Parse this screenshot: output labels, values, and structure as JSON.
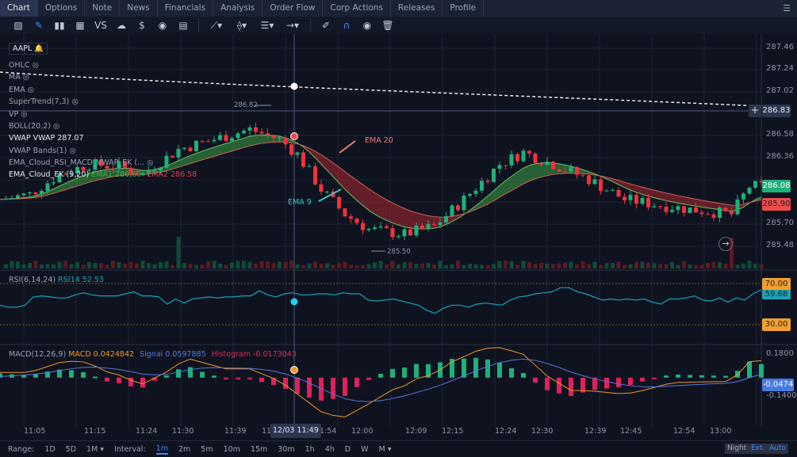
{
  "tabs": [
    "Chart",
    "Options",
    "Note",
    "News",
    "Financials",
    "Analysis",
    "Order Flow",
    "Corp Actions",
    "Releases",
    "Profile"
  ],
  "active_tab": "Chart",
  "toolbar": [
    "line-chart-icon",
    "pencil-icon",
    "candles-icon",
    "grid-icon",
    "vs-icon",
    "cloud-icon",
    "dollar-icon",
    "dividend-icon",
    "layout-icon",
    "trendline-icon",
    "multipoint-icon",
    "fib-icon",
    "arrow-icon",
    "brush-icon",
    "magnet-icon",
    "eye-icon",
    "trash-icon"
  ],
  "symbol": "AAPL",
  "legends": {
    "ohlc": "OHLC",
    "ma": "MA",
    "ema": "EMA",
    "supertrend": "SuperTrend(7,3)",
    "vp": "VP",
    "boll": "BOLL(20,2)",
    "vwap_name": "VWAP",
    "vwap_val": "VWAP 287.07",
    "vwap_bands": "VWAP Bands(1)",
    "ema_cloud_rsi": "EMA_Cloud_RSI_MACD_VWAP_EK (...",
    "ema_cloud": "EMA_Cloud_EK (9,20)",
    "ema1": "EMA1 286.60",
    "ema2": "EMA2 286.58",
    "rsi": "RSI(6,14,24)",
    "rsi14": "RSI14 52.53",
    "macd": "MACD(12,26,9)",
    "macd_val": "MACD 0.0424842",
    "signal": "Signal 0.0597885",
    "hist": "Histogram -0.0173043"
  },
  "annotations": {
    "ema20": "EMA 20",
    "ema9": "EMA 9",
    "high": "286.82",
    "low": "285.50"
  },
  "price_axis": [
    "287.46",
    "287.24",
    "287.02",
    "286.58",
    "286.36",
    "285.70",
    "285.48"
  ],
  "price_badges": {
    "crosshair": "286.83",
    "last_green": "286.08",
    "last_red": "285.90"
  },
  "rsi_axis": {
    "upper": "70.00",
    "current": "59.68",
    "lower": "30.00"
  },
  "macd_axis": {
    "top": "0.1800",
    "current": "-0.0474",
    "bottom": "-0.1400"
  },
  "x_axis": [
    "11:05",
    "11:15",
    "11:24",
    "11:30",
    "11:39",
    "11",
    "1:54",
    "12:00",
    "12:09",
    "12:15",
    "12:24",
    "12:30",
    "12:39",
    "12:45",
    "12:54",
    "13:00"
  ],
  "crosshair_time": "12/03 11:49",
  "range": {
    "label": "Range:",
    "options": [
      "1D",
      "5D",
      "1M ▾"
    ]
  },
  "interval": {
    "label": "Interval:",
    "options": [
      "1m",
      "2m",
      "5m",
      "10m",
      "15m",
      "30m",
      "1h",
      "4h",
      "D",
      "W",
      "M ▾"
    ],
    "selected": "1m"
  },
  "modes": [
    "Night",
    "Ext.",
    "Auto"
  ],
  "colors": {
    "up": "#1fb07a",
    "down": "#f0323c",
    "rsi": "#1aa3b8",
    "macd": "#f0962a",
    "signal": "#5577dd",
    "bg": "#0f1320"
  },
  "chart_data": {
    "type": "candlestick",
    "price_path": [
      [
        "11:00",
        285.95
      ],
      [
        "11:05",
        286.0
      ],
      [
        "11:10",
        286.2
      ],
      [
        "11:15",
        286.3
      ],
      [
        "11:20",
        286.28
      ],
      [
        "11:24",
        286.2
      ],
      [
        "11:30",
        286.45
      ],
      [
        "11:36",
        286.55
      ],
      [
        "11:42",
        286.65
      ],
      [
        "11:47",
        286.55
      ],
      [
        "11:50",
        286.4
      ],
      [
        "11:54",
        286.05
      ],
      [
        "11:58",
        285.8
      ],
      [
        "12:02",
        285.65
      ],
      [
        "12:08",
        285.6
      ],
      [
        "12:13",
        285.68
      ],
      [
        "12:18",
        285.95
      ],
      [
        "12:24",
        286.3
      ],
      [
        "12:28",
        286.42
      ],
      [
        "12:33",
        286.3
      ],
      [
        "12:39",
        286.15
      ],
      [
        "12:45",
        285.95
      ],
      [
        "12:50",
        285.9
      ],
      [
        "12:56",
        285.85
      ],
      [
        "13:03",
        285.8
      ],
      [
        "13:06",
        286.08
      ]
    ],
    "vwap": 287.07,
    "rsi": [
      49,
      47,
      47,
      49,
      57,
      58,
      57,
      56,
      56,
      59,
      61,
      59,
      58,
      58,
      58,
      60,
      62,
      58,
      58,
      57,
      50,
      55,
      51,
      55,
      56,
      57,
      56,
      57,
      57,
      58,
      58,
      63,
      59,
      57,
      60,
      61,
      59,
      59,
      60,
      60,
      59,
      61,
      60,
      60,
      54,
      53,
      54,
      55,
      53,
      51,
      49,
      44,
      41,
      46,
      49,
      49,
      47,
      50,
      51,
      50,
      49,
      54,
      57,
      58,
      60,
      61,
      62,
      66,
      66,
      62,
      60,
      57,
      54,
      55,
      54,
      55,
      54,
      55,
      52,
      50,
      55,
      55,
      56,
      58,
      54,
      53,
      56,
      52,
      56,
      54,
      60,
      64
    ],
    "macd_range": [
      -0.14,
      0.18
    ]
  }
}
